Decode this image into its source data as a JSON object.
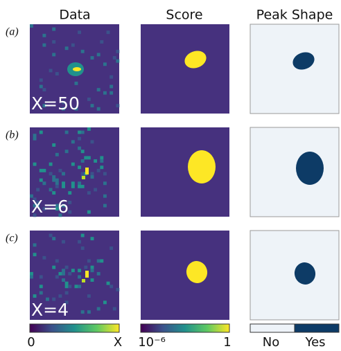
{
  "columns": [
    "Data",
    "Score",
    "Peak Shape"
  ],
  "rows": [
    {
      "label": "(a)",
      "annotation": "X=50"
    },
    {
      "label": "(b)",
      "annotation": "X=6"
    },
    {
      "label": "(c)",
      "annotation": "X=4"
    }
  ],
  "colorbars": {
    "data": [
      "0",
      "X"
    ],
    "score": [
      "10⁻⁶",
      "1"
    ],
    "shape": [
      "No",
      "Yes"
    ]
  }
}
